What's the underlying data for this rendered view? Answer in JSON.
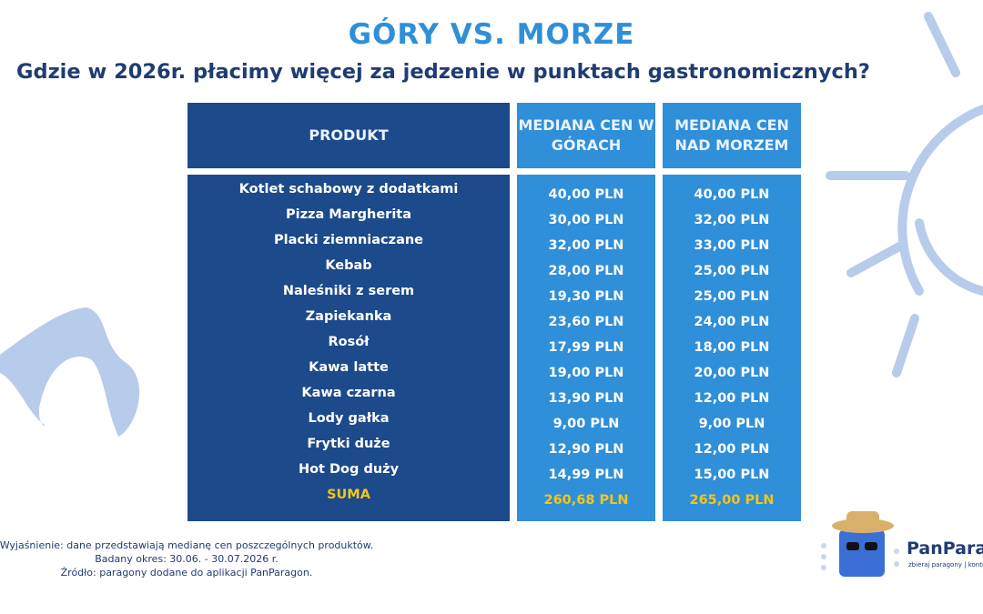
{
  "header": {
    "title": "GÓRY VS. MORZE",
    "subtitle": "Gdzie w 2026r. płacimy więcej za jedzenie w punktach gastronomicznych?"
  },
  "table": {
    "columns": [
      "PRODUKT",
      "MEDIANA CEN W GÓRACH",
      "MEDIANA CEN NAD MORZEM"
    ],
    "rows": [
      [
        "Kotlet schabowy z dodatkami",
        "40,00 PLN",
        "40,00 PLN"
      ],
      [
        "Pizza Margherita",
        "30,00 PLN",
        "32,00 PLN"
      ],
      [
        "Placki ziemniaczane",
        "32,00 PLN",
        "33,00 PLN"
      ],
      [
        "Kebab",
        "28,00 PLN",
        "25,00 PLN"
      ],
      [
        "Naleśniki z serem",
        "19,30 PLN",
        "25,00 PLN"
      ],
      [
        "Zapiekanka",
        "23,60 PLN",
        "24,00 PLN"
      ],
      [
        "Rosół",
        "17,99 PLN",
        "18,00 PLN"
      ],
      [
        "Kawa latte",
        "19,00 PLN",
        "20,00 PLN"
      ],
      [
        "Kawa czarna",
        "13,90 PLN",
        "12,00 PLN"
      ],
      [
        "Lody gałka",
        "9,00 PLN",
        "9,00 PLN"
      ],
      [
        "Frytki duże",
        "12,90 PLN",
        "12,00 PLN"
      ],
      [
        "Hot Dog duży",
        "14,99 PLN",
        "15,00 PLN"
      ]
    ],
    "total": [
      "SUMA",
      "260,68 PLN",
      "265,00 PLN"
    ]
  },
  "footer": [
    "Wyjaśnienie: dane przedstawiają medianę cen poszczególnych produktów.",
    "Badany okres: 30.06. - 30.07.2026 r.",
    "Źródło: paragony dodane do aplikacji PanParagon."
  ],
  "logo": {
    "name": "PanParagon",
    "tagline": "zbieraj paragony | kontroluj wydatki"
  }
}
